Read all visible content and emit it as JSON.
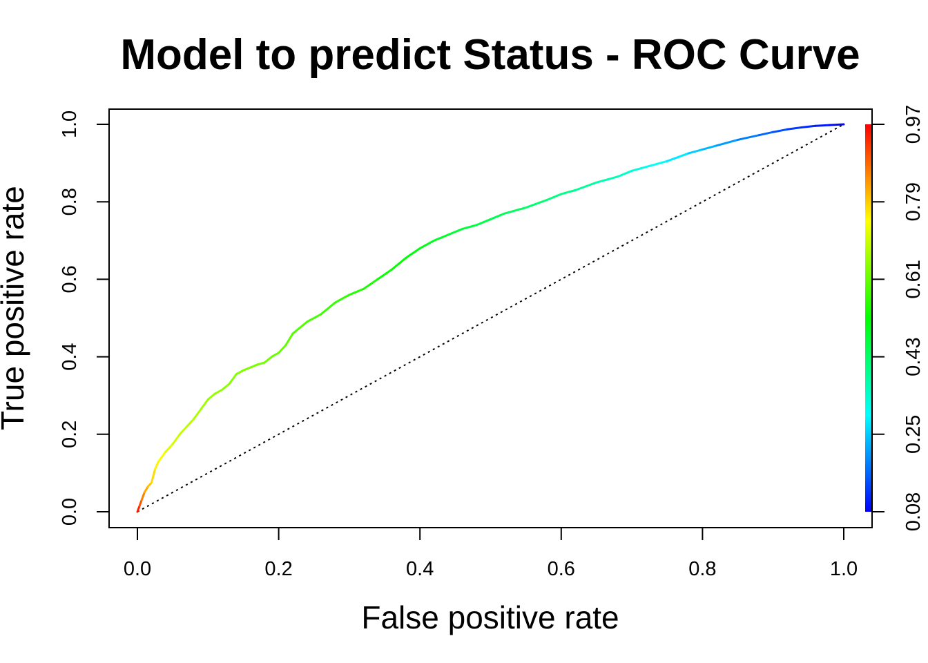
{
  "chart_data": {
    "type": "line",
    "title": "Model to predict Status - ROC Curve",
    "xlabel": "False positive rate",
    "ylabel": "True positive rate",
    "xlim": [
      0,
      1
    ],
    "ylim": [
      0,
      1
    ],
    "grid": false,
    "x_ticks": [
      "0.0",
      "0.2",
      "0.4",
      "0.6",
      "0.8",
      "1.0"
    ],
    "y_ticks": [
      "0.0",
      "0.2",
      "0.4",
      "0.6",
      "0.8",
      "1.0"
    ],
    "colorbar": {
      "ticks": [
        "0.08",
        "0.25",
        "0.43",
        "0.61",
        "0.79",
        "0.97"
      ],
      "range": [
        0.08,
        0.97
      ],
      "colors": [
        "#0000ff",
        "#00ffff",
        "#00ff00",
        "#ffff00",
        "#ff0000"
      ]
    },
    "reference_line": {
      "x": [
        0,
        1
      ],
      "y": [
        0,
        1
      ],
      "style": "dotted",
      "color": "#000000"
    },
    "series": [
      {
        "x": [
          0,
          0.003,
          0.006,
          0.01,
          0.015,
          0.02,
          0.025,
          0.03,
          0.04,
          0.05,
          0.06,
          0.07,
          0.08,
          0.09,
          0.1,
          0.11,
          0.12,
          0.13,
          0.14,
          0.15,
          0.17,
          0.18,
          0.19,
          0.2,
          0.21,
          0.22,
          0.24,
          0.26,
          0.28,
          0.3,
          0.32,
          0.34,
          0.36,
          0.38,
          0.4,
          0.42,
          0.44,
          0.46,
          0.48,
          0.5,
          0.52,
          0.55,
          0.58,
          0.6,
          0.62,
          0.65,
          0.68,
          0.7,
          0.72,
          0.75,
          0.78,
          0.8,
          0.82,
          0.85,
          0.88,
          0.9,
          0.92,
          0.94,
          0.96,
          0.98,
          1.0
        ],
        "y": [
          0,
          0.015,
          0.03,
          0.05,
          0.065,
          0.075,
          0.11,
          0.13,
          0.155,
          0.175,
          0.2,
          0.22,
          0.24,
          0.265,
          0.29,
          0.305,
          0.315,
          0.33,
          0.355,
          0.365,
          0.38,
          0.385,
          0.4,
          0.41,
          0.43,
          0.46,
          0.49,
          0.51,
          0.54,
          0.56,
          0.575,
          0.6,
          0.625,
          0.655,
          0.68,
          0.7,
          0.715,
          0.73,
          0.74,
          0.755,
          0.77,
          0.785,
          0.805,
          0.82,
          0.83,
          0.85,
          0.865,
          0.88,
          0.89,
          0.905,
          0.925,
          0.935,
          0.945,
          0.96,
          0.972,
          0.98,
          0.987,
          0.992,
          0.996,
          0.998,
          1.0
        ],
        "threshold": [
          0.97,
          0.92,
          0.88,
          0.84,
          0.81,
          0.79,
          0.77,
          0.75,
          0.73,
          0.71,
          0.7,
          0.69,
          0.68,
          0.67,
          0.66,
          0.655,
          0.65,
          0.645,
          0.64,
          0.635,
          0.63,
          0.625,
          0.62,
          0.615,
          0.61,
          0.6,
          0.59,
          0.58,
          0.57,
          0.56,
          0.55,
          0.54,
          0.53,
          0.52,
          0.51,
          0.5,
          0.49,
          0.48,
          0.47,
          0.46,
          0.45,
          0.44,
          0.42,
          0.41,
          0.4,
          0.38,
          0.36,
          0.34,
          0.32,
          0.3,
          0.27,
          0.25,
          0.23,
          0.2,
          0.18,
          0.16,
          0.14,
          0.12,
          0.11,
          0.095,
          0.08
        ]
      }
    ]
  }
}
